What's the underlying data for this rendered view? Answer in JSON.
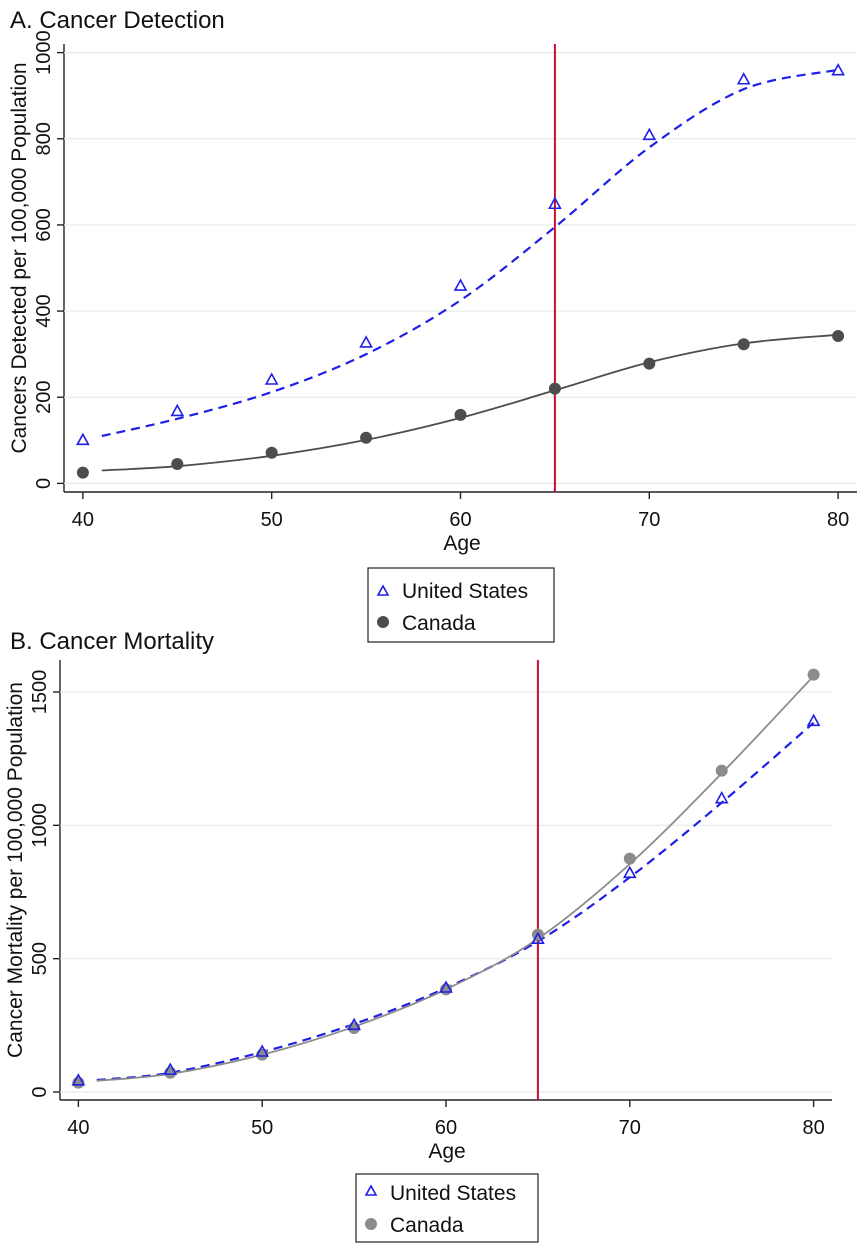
{
  "chart_data": [
    {
      "type": "line",
      "title": "A. Cancer Detection",
      "xlabel": "Age",
      "ylabel": "Cancers Detected per 100,000 Population",
      "x": [
        40,
        45,
        50,
        55,
        60,
        65,
        70,
        75,
        80
      ],
      "xlim": [
        39,
        81
      ],
      "ylim": [
        -20,
        1020
      ],
      "xticks": [
        40,
        50,
        60,
        70,
        80
      ],
      "yticks": [
        0,
        200,
        400,
        600,
        800,
        1000
      ],
      "grid": true,
      "reference_line_x": 65,
      "reference_line_color": "#c8102e",
      "legend_position": "bottom",
      "series": [
        {
          "name": "United States",
          "marker": "hollow-triangle",
          "color": "#1f1fe6",
          "line_style": "dashed",
          "values": [
            100,
            167,
            240,
            326,
            458,
            648,
            808,
            937,
            958
          ],
          "fitted": [
            [
              41,
              110
            ],
            [
              45,
              150
            ],
            [
              50,
              212
            ],
            [
              55,
              300
            ],
            [
              60,
              425
            ],
            [
              65,
              595
            ],
            [
              70,
              780
            ],
            [
              75,
              915
            ],
            [
              80,
              960
            ]
          ]
        },
        {
          "name": "Canada",
          "marker": "filled-circle",
          "color": "#4d4d4d",
          "line_style": "solid",
          "values": [
            25,
            45,
            71,
            106,
            159,
            220,
            278,
            323,
            342
          ],
          "fitted": [
            [
              41,
              30
            ],
            [
              45,
              40
            ],
            [
              50,
              64
            ],
            [
              55,
              101
            ],
            [
              60,
              152
            ],
            [
              65,
              216
            ],
            [
              70,
              281
            ],
            [
              75,
              325
            ],
            [
              80,
              345
            ]
          ]
        }
      ]
    },
    {
      "type": "line",
      "title": "B. Cancer Mortality",
      "xlabel": "Age",
      "ylabel": "Cancer Mortality per 100,000 Population",
      "x": [
        40,
        45,
        50,
        55,
        60,
        65,
        70,
        75,
        80
      ],
      "xlim": [
        39,
        81
      ],
      "ylim": [
        -30,
        1620
      ],
      "xticks": [
        40,
        50,
        60,
        70,
        80
      ],
      "yticks": [
        0,
        500,
        1000,
        1500
      ],
      "grid": true,
      "reference_line_x": 65,
      "reference_line_color": "#c8102e",
      "legend_position": "bottom",
      "series": [
        {
          "name": "United States",
          "marker": "hollow-triangle",
          "color": "#1f1fe6",
          "line_style": "dashed",
          "values": [
            42,
            82,
            150,
            250,
            390,
            573,
            820,
            1100,
            1390
          ],
          "fitted": [
            [
              41,
              45
            ],
            [
              45,
              72
            ],
            [
              50,
              150
            ],
            [
              55,
              255
            ],
            [
              60,
              390
            ],
            [
              65,
              565
            ],
            [
              70,
              805
            ],
            [
              75,
              1085
            ],
            [
              80,
              1385
            ]
          ]
        },
        {
          "name": "Canada",
          "marker": "filled-circle",
          "color": "#8c8c8c",
          "line_style": "solid",
          "values": [
            35,
            72,
            140,
            240,
            385,
            590,
            875,
            1205,
            1565
          ],
          "fitted": [
            [
              41,
              42
            ],
            [
              45,
              68
            ],
            [
              50,
              140
            ],
            [
              55,
              245
            ],
            [
              60,
              385
            ],
            [
              65,
              575
            ],
            [
              70,
              855
            ],
            [
              75,
              1195
            ],
            [
              80,
              1560
            ]
          ]
        }
      ]
    }
  ]
}
